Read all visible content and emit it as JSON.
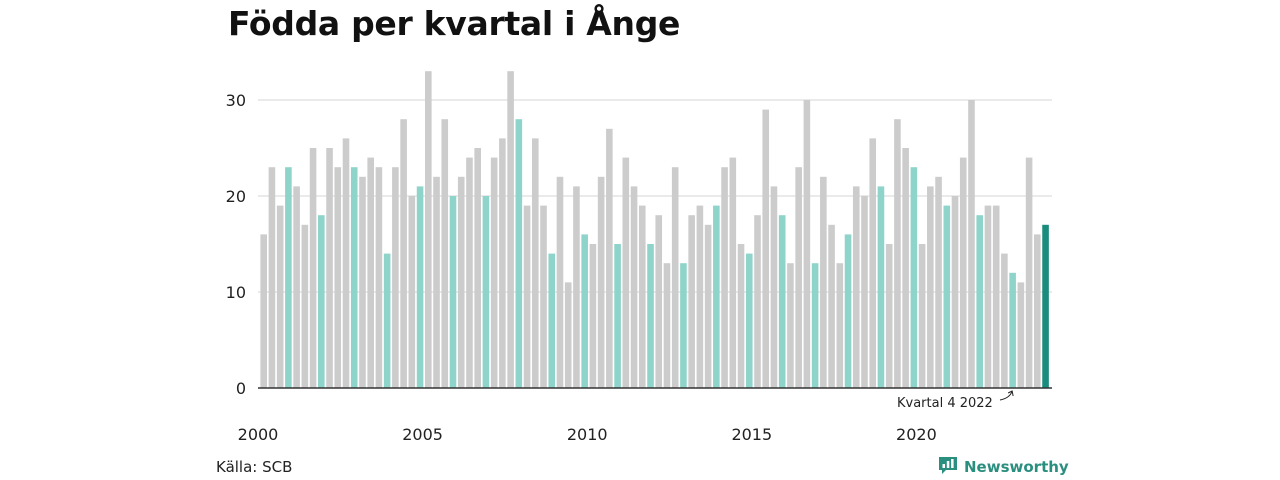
{
  "title": "Födda per kvartal i Ånge",
  "source": "Källa: SCB",
  "brand": {
    "name": "Newsworthy",
    "icon": "newsworthy-logo-icon"
  },
  "colors": {
    "default_bar": "#cccccc",
    "highlight_quarter_bar": "#8fd4ca",
    "latest_bar": "#1a8c7d",
    "gridline": "#dddddd",
    "axis": "#333333",
    "brand": "#2a8f7f"
  },
  "chart_data": {
    "type": "bar",
    "title": "Födda per kvartal i Ånge",
    "xlabel": "",
    "ylabel": "",
    "ylim": [
      0,
      30
    ],
    "yticks": [
      0,
      10,
      20,
      30
    ],
    "xtick_labels": [
      "2000",
      "2005",
      "2010",
      "2015",
      "2020"
    ],
    "grid": true,
    "highlight_quarter": 4,
    "annotation": {
      "text": "Kvartal 4 2022",
      "target_year": 2022,
      "target_quarter": 4
    },
    "start_year": 2000,
    "values": [
      16,
      23,
      19,
      23,
      21,
      17,
      25,
      18,
      25,
      23,
      26,
      23,
      22,
      24,
      23,
      14,
      23,
      28,
      20,
      21,
      33,
      22,
      28,
      20,
      22,
      24,
      25,
      20,
      24,
      26,
      33,
      28,
      19,
      26,
      19,
      14,
      22,
      11,
      21,
      16,
      15,
      22,
      27,
      15,
      24,
      21,
      19,
      15,
      18,
      13,
      23,
      13,
      18,
      19,
      17,
      19,
      23,
      24,
      15,
      14,
      18,
      29,
      21,
      18,
      13,
      23,
      30,
      13,
      22,
      17,
      13,
      16,
      21,
      20,
      26,
      21,
      15,
      28,
      25,
      23,
      15,
      21,
      22,
      19,
      20,
      24,
      30,
      18,
      19,
      19,
      14,
      12,
      11,
      24,
      16,
      17
    ]
  }
}
